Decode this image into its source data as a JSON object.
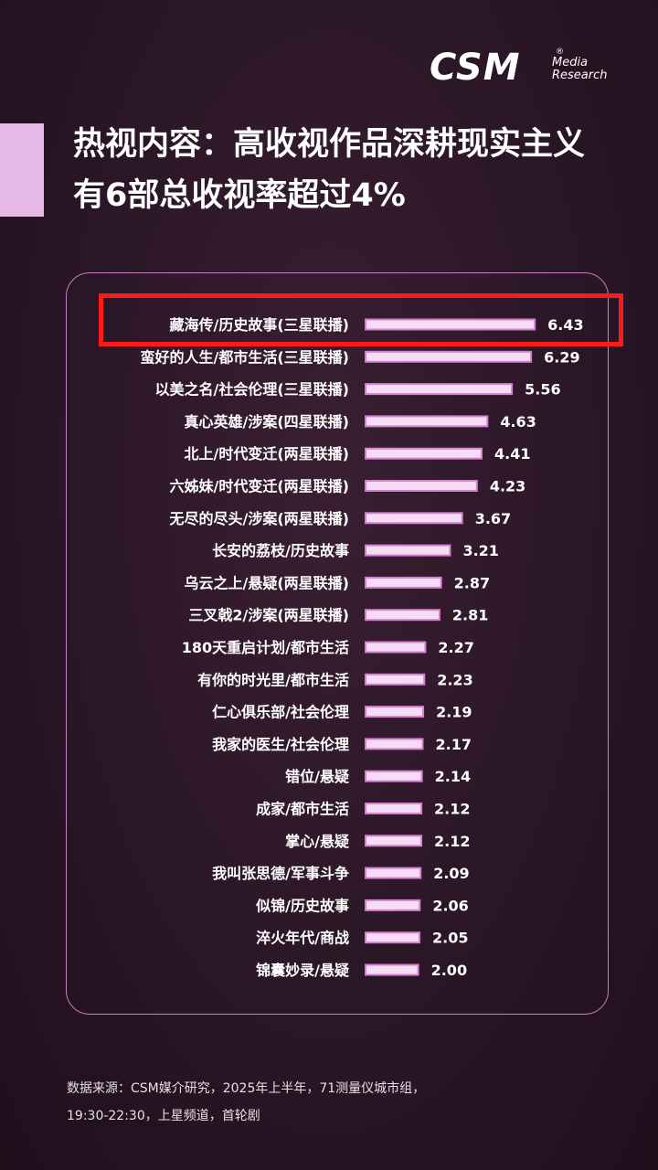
{
  "header": {
    "logo_main": "CSM",
    "logo_sub_line1": "Media",
    "logo_sub_line2": "Research",
    "logo_mark": "®",
    "title_line1": "热视内容：高收视作品深耕现实主义",
    "title_line2": "有6部总收视率超过4%"
  },
  "colors": {
    "bar_fill": "#f7dcf5",
    "bar_border": "#d480d0",
    "highlight": "#ff1a1a",
    "panel_border": "#c67fc0"
  },
  "chart_data": {
    "type": "bar",
    "orientation": "horizontal",
    "categories": [
      "藏海传/历史故事(三星联播)",
      "蛮好的人生/都市生活(三星联播)",
      "以美之名/社会伦理(三星联播)",
      "真心英雄/涉案(四星联播)",
      "北上/时代变迁(两星联播)",
      "六姊妹/时代变迁(两星联播)",
      "无尽的尽头/涉案(两星联播)",
      "长安的荔枝/历史故事",
      "乌云之上/悬疑(两星联播)",
      "三叉戟2/涉案(两星联播)",
      "180天重启计划/都市生活",
      "有你的时光里/都市生活",
      "仁心俱乐部/社会伦理",
      "我家的医生/社会伦理",
      "错位/悬疑",
      "成家/都市生活",
      "掌心/悬疑",
      "我叫张思德/军事斗争",
      "似锦/历史故事",
      "淬火年代/商战",
      "锦囊妙录/悬疑"
    ],
    "values": [
      6.43,
      6.29,
      5.56,
      4.63,
      4.41,
      4.23,
      3.67,
      3.21,
      2.87,
      2.81,
      2.27,
      2.23,
      2.19,
      2.17,
      2.14,
      2.12,
      2.12,
      2.09,
      2.06,
      2.05,
      2.0
    ],
    "value_labels": [
      "6.43",
      "6.29",
      "5.56",
      "4.63",
      "4.41",
      "4.23",
      "3.67",
      "3.21",
      "2.87",
      "2.81",
      "2.27",
      "2.23",
      "2.19",
      "2.17",
      "2.14",
      "2.12",
      "2.12",
      "2.09",
      "2.06",
      "2.05",
      "2.00"
    ],
    "highlighted_index": 0,
    "grid": false,
    "legend": "none"
  },
  "footer": {
    "source_line1": "数据来源：CSM媒介研究，2025年上半年，71测量仪城市组，",
    "source_line2": "19:30-22:30，上星频道，首轮剧"
  }
}
